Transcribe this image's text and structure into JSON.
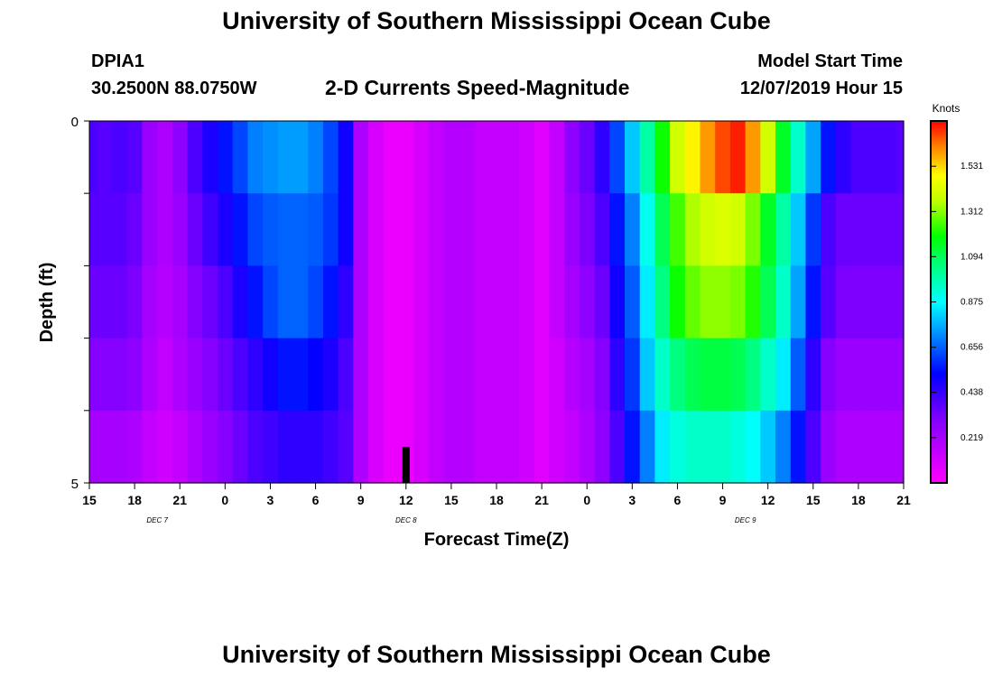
{
  "header": {
    "title_top": "University of Southern Mississippi Ocean Cube",
    "station_id": "DPIA1",
    "station_coords": "30.2500N 88.0750W",
    "product": "2-D Currents Speed-Magnitude",
    "model_label": "Model Start Time",
    "model_time": "12/07/2019 Hour 15",
    "title_bottom": "University of Southern Mississippi Ocean Cube"
  },
  "chart_data": {
    "type": "heatmap",
    "title": "2-D Currents Speed-Magnitude",
    "xlabel": "Forecast Time(Z)",
    "ylabel": "Depth (ft)",
    "x_tick_labels": [
      "15",
      "18",
      "21",
      "0",
      "3",
      "6",
      "9",
      "12",
      "15",
      "18",
      "21",
      "0",
      "3",
      "6",
      "9",
      "12",
      "15",
      "18",
      "21"
    ],
    "day_labels": [
      {
        "label": "DEC 7",
        "tick_index": 1.5
      },
      {
        "label": "DEC 8",
        "tick_index": 7
      },
      {
        "label": "DEC 9",
        "tick_index": 14.5
      }
    ],
    "y_tick_labels": [
      {
        "label": "0",
        "depth": 0
      },
      {
        "label": "5",
        "depth": 5
      }
    ],
    "ylim": [
      0,
      5
    ],
    "x_hours": [
      0,
      54
    ],
    "colorbar": {
      "label": "Knots",
      "min": 0.0,
      "max": 1.75,
      "ticks": [
        "0.219",
        "0.438",
        "0.656",
        "0.875",
        "1.094",
        "1.312",
        "1.531"
      ],
      "tick_values": [
        0.219,
        0.438,
        0.656,
        0.875,
        1.094,
        1.312,
        1.531
      ]
    },
    "time_hours": [
      0,
      1,
      2,
      3,
      4,
      5,
      6,
      7,
      8,
      9,
      10,
      11,
      12,
      13,
      14,
      15,
      16,
      17,
      18,
      19,
      20,
      21,
      22,
      23,
      24,
      25,
      26,
      27,
      28,
      29,
      30,
      31,
      32,
      33,
      34,
      35,
      36,
      37,
      38,
      39,
      40,
      41,
      42,
      43,
      44,
      45,
      46,
      47,
      48,
      49,
      50,
      51,
      52,
      53,
      54
    ],
    "depth_rows": [
      0.5,
      1.5,
      2.5,
      3.5,
      4.5
    ],
    "values": [
      [
        0.4,
        0.38,
        0.4,
        0.38,
        0.25,
        0.2,
        0.28,
        0.4,
        0.48,
        0.55,
        0.62,
        0.7,
        0.72,
        0.74,
        0.74,
        0.7,
        0.62,
        0.5,
        0.2,
        0.1,
        0.05,
        0.05,
        0.1,
        0.15,
        0.18,
        0.18,
        0.15,
        0.15,
        0.15,
        0.12,
        0.08,
        0.15,
        0.28,
        0.35,
        0.45,
        0.62,
        0.8,
        1.0,
        1.2,
        1.4,
        1.5,
        1.6,
        1.68,
        1.72,
        1.6,
        1.4,
        1.15,
        0.95,
        0.75,
        0.55,
        0.45,
        0.4,
        0.4,
        0.4,
        0.38
      ],
      [
        0.38,
        0.38,
        0.38,
        0.35,
        0.25,
        0.2,
        0.25,
        0.35,
        0.42,
        0.48,
        0.55,
        0.62,
        0.65,
        0.66,
        0.66,
        0.65,
        0.6,
        0.5,
        0.2,
        0.1,
        0.05,
        0.05,
        0.1,
        0.15,
        0.18,
        0.18,
        0.15,
        0.15,
        0.15,
        0.12,
        0.08,
        0.15,
        0.25,
        0.32,
        0.4,
        0.55,
        0.7,
        0.9,
        1.1,
        1.25,
        1.35,
        1.4,
        1.42,
        1.4,
        1.3,
        1.15,
        1.0,
        0.8,
        0.6,
        0.4,
        0.35,
        0.35,
        0.35,
        0.35,
        0.35
      ],
      [
        0.35,
        0.35,
        0.35,
        0.32,
        0.22,
        0.18,
        0.22,
        0.3,
        0.35,
        0.4,
        0.48,
        0.55,
        0.62,
        0.66,
        0.66,
        0.62,
        0.55,
        0.45,
        0.2,
        0.1,
        0.05,
        0.05,
        0.1,
        0.15,
        0.18,
        0.18,
        0.15,
        0.15,
        0.15,
        0.12,
        0.08,
        0.15,
        0.22,
        0.28,
        0.35,
        0.5,
        0.65,
        0.85,
        1.05,
        1.2,
        1.28,
        1.32,
        1.32,
        1.3,
        1.22,
        1.1,
        0.95,
        0.75,
        0.55,
        0.38,
        0.32,
        0.32,
        0.32,
        0.32,
        0.32
      ],
      [
        0.3,
        0.3,
        0.3,
        0.28,
        0.2,
        0.15,
        0.2,
        0.25,
        0.3,
        0.35,
        0.4,
        0.45,
        0.5,
        0.55,
        0.55,
        0.52,
        0.48,
        0.4,
        0.2,
        0.1,
        0.05,
        0.05,
        0.1,
        0.15,
        0.18,
        0.18,
        0.15,
        0.15,
        0.15,
        0.12,
        0.08,
        0.12,
        0.18,
        0.22,
        0.3,
        0.45,
        0.6,
        0.8,
        0.95,
        1.05,
        1.1,
        1.12,
        1.12,
        1.1,
        1.05,
        0.95,
        0.85,
        0.65,
        0.45,
        0.3,
        0.25,
        0.25,
        0.25,
        0.25,
        0.25
      ],
      [
        0.22,
        0.22,
        0.22,
        0.2,
        0.15,
        0.12,
        0.15,
        0.2,
        0.25,
        0.3,
        0.35,
        0.4,
        0.42,
        0.45,
        0.45,
        0.45,
        0.42,
        0.38,
        0.2,
        0.1,
        0.05,
        0.05,
        0.1,
        0.15,
        0.18,
        0.18,
        0.15,
        0.15,
        0.15,
        0.12,
        0.08,
        0.12,
        0.15,
        0.2,
        0.28,
        0.4,
        0.55,
        0.7,
        0.85,
        0.92,
        0.95,
        0.95,
        0.95,
        0.92,
        0.88,
        0.8,
        0.7,
        0.55,
        0.4,
        0.25,
        0.2,
        0.2,
        0.2,
        0.2,
        0.2
      ]
    ],
    "marker": {
      "hour": 21,
      "depth_from": 4.5,
      "depth_to": 5.0
    }
  }
}
